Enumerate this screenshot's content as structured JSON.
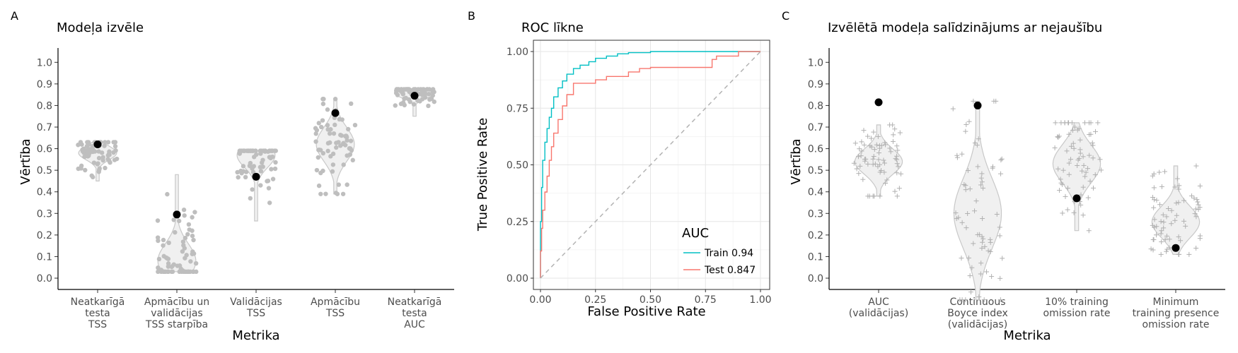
{
  "chart_data": [
    {
      "tag": "A",
      "type": "scatter",
      "title": "Modeļa izvēle",
      "xlabel": "Metrika",
      "ylabel": "Vērtība",
      "ylim": [
        0,
        1.05
      ],
      "yticks": [
        "0.0",
        "0.1",
        "0.2",
        "0.3",
        "0.4",
        "0.5",
        "0.6",
        "0.7",
        "0.8",
        "0.9",
        "1.0"
      ],
      "grid": false,
      "categories": [
        [
          "Neatkarīgā",
          "testa",
          "TSS"
        ],
        [
          "Apmācību un",
          "validācijas",
          "TSS starpība"
        ],
        [
          "Validācijas",
          "TSS"
        ],
        [
          "Apmācību",
          "TSS"
        ],
        [
          "Neatkarīgā",
          "testa",
          "AUC"
        ]
      ],
      "selected": [
        0.62,
        0.295,
        0.47,
        0.765,
        0.845
      ],
      "distribution_range": [
        [
          0.45,
          0.63
        ],
        [
          0.03,
          0.48
        ],
        [
          0.265,
          0.59
        ],
        [
          0.39,
          0.83
        ],
        [
          0.75,
          0.875
        ]
      ],
      "distribution_mode": [
        0.58,
        0.08,
        0.57,
        0.62,
        0.855
      ],
      "colors": {
        "points": "#bebebe",
        "selected": "#000000",
        "violin": "#c8c8c8"
      }
    },
    {
      "tag": "B",
      "type": "line",
      "title": "ROC līkne",
      "xlabel": "False Positive Rate",
      "ylabel": "True Positive Rate",
      "xlim": [
        0,
        1
      ],
      "ylim": [
        0,
        1
      ],
      "xticks": [
        "0.00",
        "0.25",
        "0.50",
        "0.75",
        "1.00"
      ],
      "yticks": [
        "0.00",
        "0.25",
        "0.50",
        "0.75",
        "1.00"
      ],
      "grid": true,
      "legend_title": "AUC",
      "legend_position": "bottom-right",
      "series": [
        {
          "name": "Train 0.94",
          "color": "#00bfc4",
          "x": [
            0,
            0.005,
            0.01,
            0.02,
            0.03,
            0.04,
            0.05,
            0.06,
            0.08,
            0.1,
            0.12,
            0.15,
            0.18,
            0.22,
            0.25,
            0.3,
            0.35,
            0.4,
            0.5,
            0.6,
            0.7,
            0.8,
            0.9,
            1.0
          ],
          "y": [
            0,
            0.25,
            0.4,
            0.52,
            0.6,
            0.66,
            0.71,
            0.75,
            0.8,
            0.84,
            0.87,
            0.9,
            0.925,
            0.94,
            0.955,
            0.97,
            0.98,
            0.99,
            0.995,
            1.0,
            1.0,
            1.0,
            1.0,
            1.0
          ]
        },
        {
          "name": "Test 0.847",
          "color": "#f8766d",
          "x": [
            0,
            0.005,
            0.01,
            0.02,
            0.03,
            0.04,
            0.05,
            0.06,
            0.08,
            0.1,
            0.12,
            0.15,
            0.2,
            0.25,
            0.3,
            0.4,
            0.45,
            0.5,
            0.55,
            0.7,
            0.78,
            0.8,
            0.9,
            1.0
          ],
          "y": [
            0,
            0.12,
            0.22,
            0.3,
            0.38,
            0.45,
            0.52,
            0.58,
            0.64,
            0.7,
            0.76,
            0.81,
            0.86,
            0.86,
            0.875,
            0.89,
            0.91,
            0.925,
            0.93,
            0.93,
            0.93,
            0.965,
            0.98,
            1.0
          ]
        },
        {
          "name": "",
          "color": "#b3b3b3",
          "dashed": true,
          "x": [
            0,
            1
          ],
          "y": [
            0,
            1
          ]
        }
      ]
    },
    {
      "tag": "C",
      "type": "scatter",
      "title": "Izvēlētā modeļa salīdzinājums ar nejaušību",
      "xlabel": "Metrika",
      "ylabel": "Vērtība",
      "ylim": [
        0,
        1.05
      ],
      "yticks": [
        "0.0",
        "0.1",
        "0.2",
        "0.3",
        "0.4",
        "0.5",
        "0.6",
        "0.7",
        "0.8",
        "0.9",
        "1.0"
      ],
      "grid": false,
      "categories": [
        [
          "AUC",
          "(validācijas)"
        ],
        [
          "Continuous",
          "Boyce index",
          "(validācijas)"
        ],
        [
          "10% training",
          "omission rate"
        ],
        [
          "Minimum",
          "training presence",
          "omission rate"
        ]
      ],
      "selected": [
        0.815,
        0.8,
        0.37,
        0.14
      ],
      "distribution_range": [
        [
          0.38,
          0.71
        ],
        [
          -0.1,
          0.82
        ],
        [
          0.22,
          0.72
        ],
        [
          0.11,
          0.52
        ]
      ],
      "distribution_mode": [
        0.54,
        0.3,
        0.53,
        0.26
      ],
      "colors": {
        "points": "#b0b0b0",
        "selected": "#000000",
        "violin": "#c8c8c8"
      }
    }
  ]
}
